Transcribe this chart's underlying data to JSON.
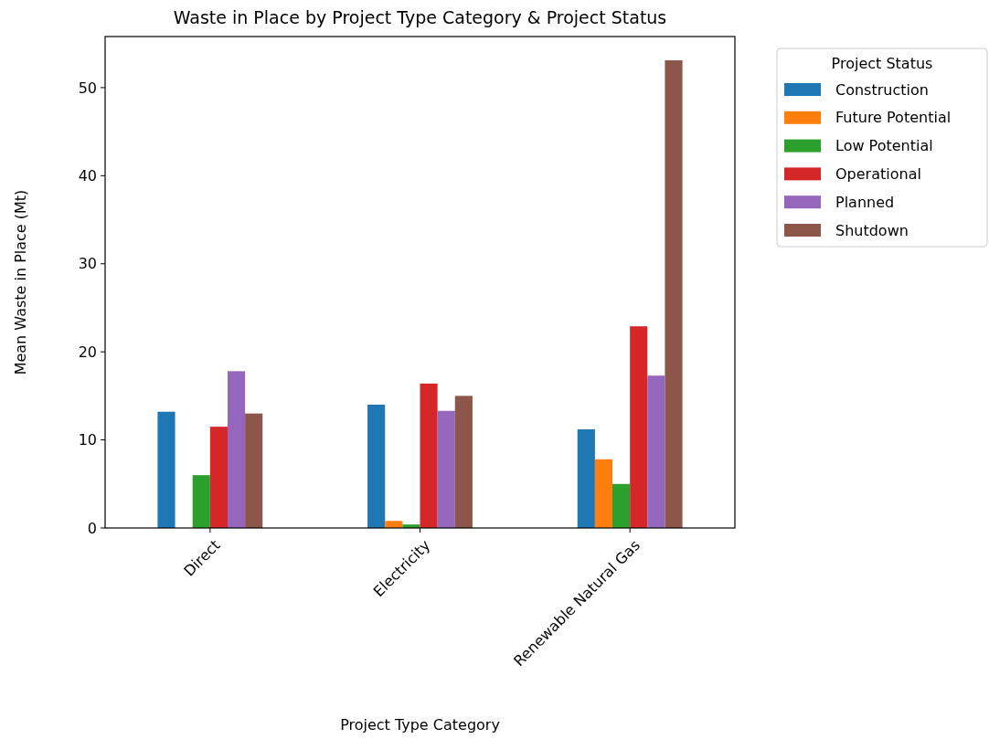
{
  "chart_data": {
    "type": "bar",
    "title": "Waste in Place by Project Type Category & Project Status",
    "xlabel": "Project Type Category",
    "ylabel": "Mean Waste in Place (Mt)",
    "legend_title": "Project Status",
    "legend": "right",
    "categories": [
      "Direct",
      "Electricity",
      "Renewable Natural Gas"
    ],
    "series": [
      {
        "name": "Construction",
        "color": "#1f77b4",
        "values": [
          13.2,
          14.0,
          11.2
        ]
      },
      {
        "name": "Future Potential",
        "color": "#ff7f0e",
        "values": [
          null,
          0.8,
          7.8
        ]
      },
      {
        "name": "Low Potential",
        "color": "#2ca02c",
        "values": [
          6.0,
          0.4,
          5.0
        ]
      },
      {
        "name": "Operational",
        "color": "#d62728",
        "values": [
          11.5,
          16.4,
          22.9
        ]
      },
      {
        "name": "Planned",
        "color": "#9467bd",
        "values": [
          17.8,
          13.3,
          17.3
        ]
      },
      {
        "name": "Shutdown",
        "color": "#8c564b",
        "values": [
          13.0,
          15.0,
          53.1
        ]
      }
    ],
    "ylim": [
      0,
      55.8
    ],
    "yticks": [
      0,
      10,
      20,
      30,
      40,
      50
    ],
    "grid": false
  }
}
